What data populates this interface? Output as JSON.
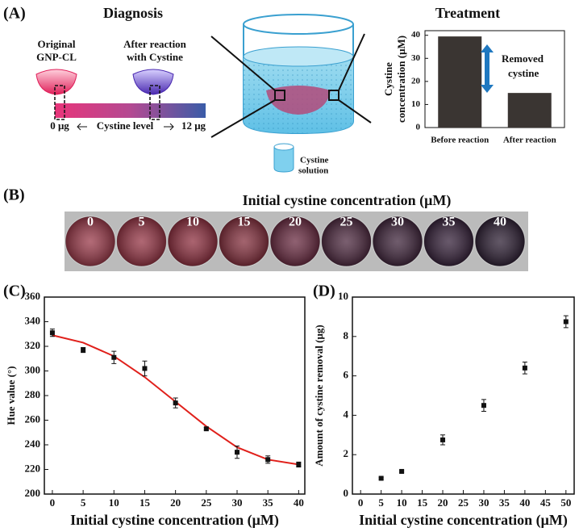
{
  "panel_labels": [
    "(A)",
    "(B)",
    "(C)",
    "(D)"
  ],
  "diagnosis": {
    "title": "Diagnosis",
    "original_label": [
      "Original",
      "GNP-CL"
    ],
    "after_label": [
      "After reaction",
      "with Cystine"
    ],
    "scale_min": "0 μg",
    "scale_label": "Cystine level",
    "scale_max": "12 μg"
  },
  "beaker_label": [
    "Cystine",
    "solution"
  ],
  "treatment_title": "Treatment",
  "wells": {
    "title": "Initial cystine concentration (μM)",
    "labels": [
      "0",
      "5",
      "10",
      "15",
      "20",
      "25",
      "30",
      "35",
      "40"
    ]
  },
  "chart_data": [
    {
      "type": "bar",
      "y_label": [
        "Cystine",
        "concentration (μM)"
      ],
      "categories": [
        "Before reaction",
        "After reaction"
      ],
      "values": [
        39.5,
        15
      ],
      "color": "#3a3532",
      "ylim": [
        0,
        42
      ],
      "yticks": [
        0,
        10,
        20,
        30,
        40
      ],
      "annotation": [
        "Removed",
        "cystine"
      ]
    },
    {
      "type": "scatter",
      "x_label": "Initial cystine concentration (μM)",
      "y_label": "Hue value (°)",
      "x": [
        0,
        5,
        10,
        15,
        20,
        25,
        30,
        35,
        40
      ],
      "series": [
        {
          "color": "#111111",
          "values": [
            331,
            317,
            311,
            302,
            274,
            253,
            234,
            228,
            224
          ],
          "errors": [
            3,
            2,
            5,
            6,
            4,
            1,
            5,
            3,
            2
          ]
        }
      ],
      "fit": {
        "color": "#e0201b",
        "values": [
          329,
          323,
          312,
          295,
          275,
          255,
          238,
          228,
          224
        ]
      },
      "xlim": [
        -1.3,
        41
      ],
      "xticks": [
        0,
        5,
        10,
        15,
        20,
        25,
        30,
        35,
        40
      ],
      "ylim": [
        200,
        360
      ],
      "yticks": [
        200,
        220,
        240,
        260,
        280,
        300,
        320,
        340,
        360
      ]
    },
    {
      "type": "scatter",
      "x_label": "Initial cystine concentration (μM)",
      "y_label": "Amount of cystine removal (μg)",
      "x": [
        5,
        10,
        20,
        30,
        40,
        50
      ],
      "series": [
        {
          "color": "#111111",
          "values": [
            0.8,
            1.15,
            2.75,
            4.5,
            6.4,
            8.75
          ],
          "errors": [
            0.05,
            0.05,
            0.25,
            0.3,
            0.3,
            0.3
          ]
        }
      ],
      "xlim": [
        -2,
        52
      ],
      "xticks": [
        0,
        5,
        10,
        15,
        20,
        25,
        30,
        35,
        40,
        45,
        50
      ],
      "ylim": [
        0,
        10
      ],
      "yticks": [
        0,
        2,
        4,
        6,
        8,
        10
      ]
    }
  ]
}
